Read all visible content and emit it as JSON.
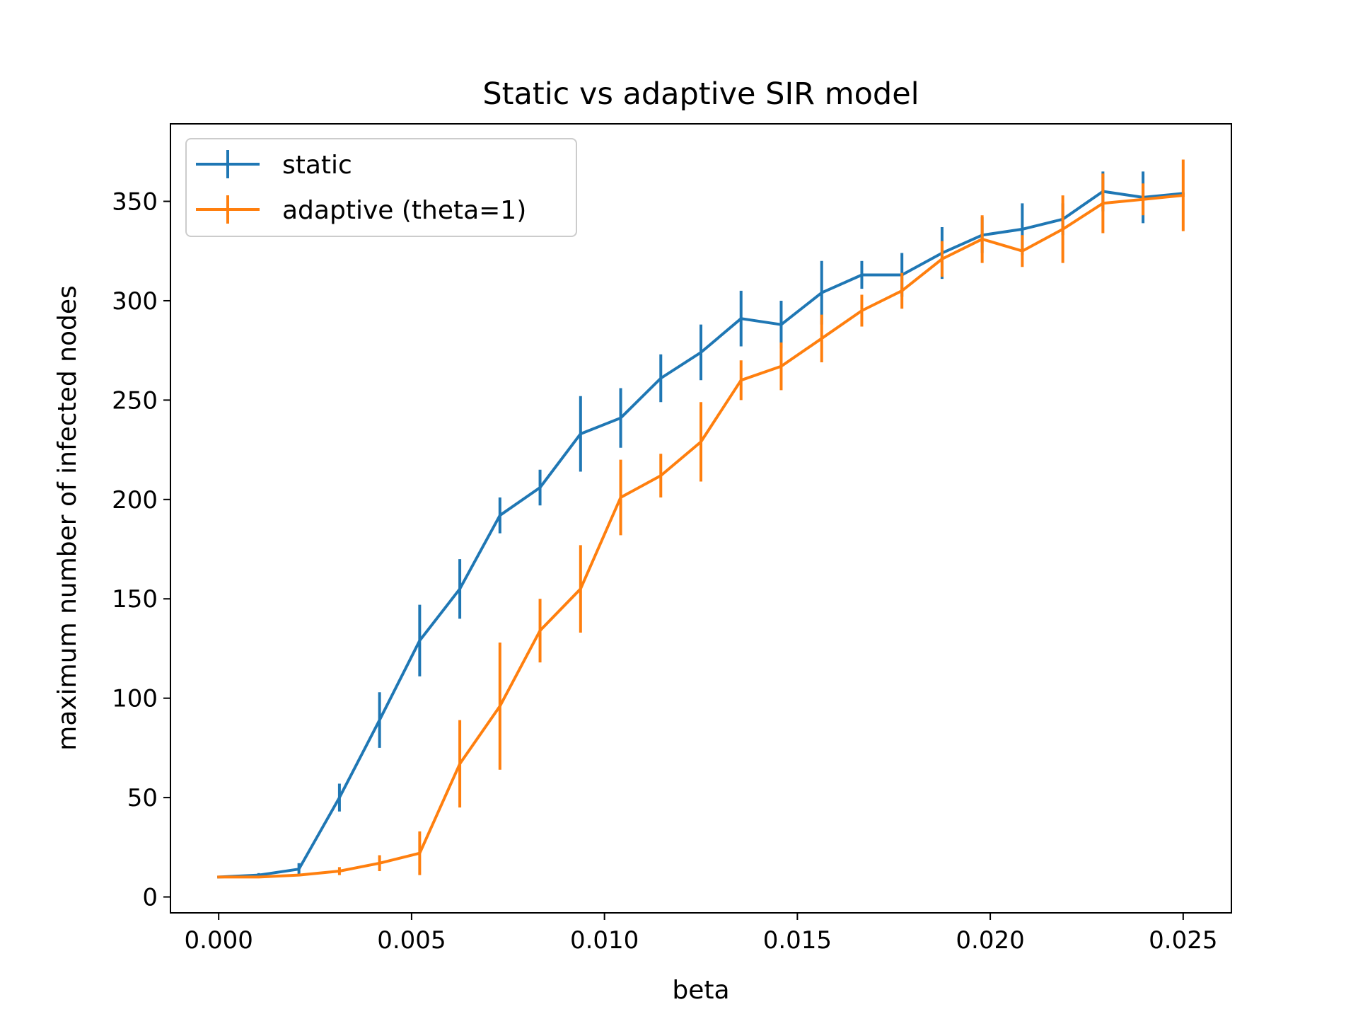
{
  "chart_data": {
    "type": "line",
    "title": "Static vs adaptive SIR model",
    "xlabel": "beta",
    "ylabel": "maximum number of infected nodes",
    "xlim": [
      -0.00125,
      0.02625
    ],
    "ylim": [
      -8,
      389
    ],
    "xticks": [
      0.0,
      0.005,
      0.01,
      0.015,
      0.02,
      0.025
    ],
    "xtick_labels": [
      "0.000",
      "0.005",
      "0.010",
      "0.015",
      "0.020",
      "0.025"
    ],
    "yticks": [
      0,
      50,
      100,
      150,
      200,
      250,
      300,
      350
    ],
    "ytick_labels": [
      "0",
      "50",
      "100",
      "150",
      "200",
      "250",
      "300",
      "350"
    ],
    "grid": false,
    "legend_position": "top-left",
    "x": [
      0.0,
      0.00104,
      0.00208,
      0.00313,
      0.00417,
      0.00521,
      0.00625,
      0.00729,
      0.00833,
      0.00938,
      0.01042,
      0.01146,
      0.0125,
      0.01354,
      0.01458,
      0.01563,
      0.01667,
      0.01771,
      0.01875,
      0.01979,
      0.02083,
      0.02188,
      0.02292,
      0.02396,
      0.025
    ],
    "series": [
      {
        "name": "static",
        "color": "#1f77b4",
        "values": [
          10,
          11,
          14,
          50,
          89,
          129,
          155,
          192,
          206,
          233,
          241,
          261,
          274,
          291,
          288,
          304,
          313,
          313,
          324,
          333,
          336,
          341,
          355,
          352,
          354
        ],
        "errors": [
          0,
          1,
          3,
          7,
          14,
          18,
          15,
          9,
          9,
          19,
          15,
          12,
          14,
          14,
          12,
          16,
          7,
          11,
          13,
          9,
          13,
          8,
          10,
          13,
          0
        ]
      },
      {
        "name": "adaptive (theta=1)",
        "color": "#ff7f0e",
        "values": [
          10,
          10,
          11,
          13,
          17,
          22,
          67,
          96,
          134,
          155,
          201,
          212,
          229,
          260,
          267,
          281,
          295,
          305,
          321,
          331,
          325,
          336,
          349,
          351,
          353
        ],
        "errors": [
          0,
          0,
          0,
          2,
          4,
          11,
          22,
          32,
          16,
          22,
          19,
          11,
          20,
          10,
          12,
          12,
          8,
          9,
          9,
          12,
          8,
          17,
          15,
          8,
          18
        ]
      }
    ]
  }
}
